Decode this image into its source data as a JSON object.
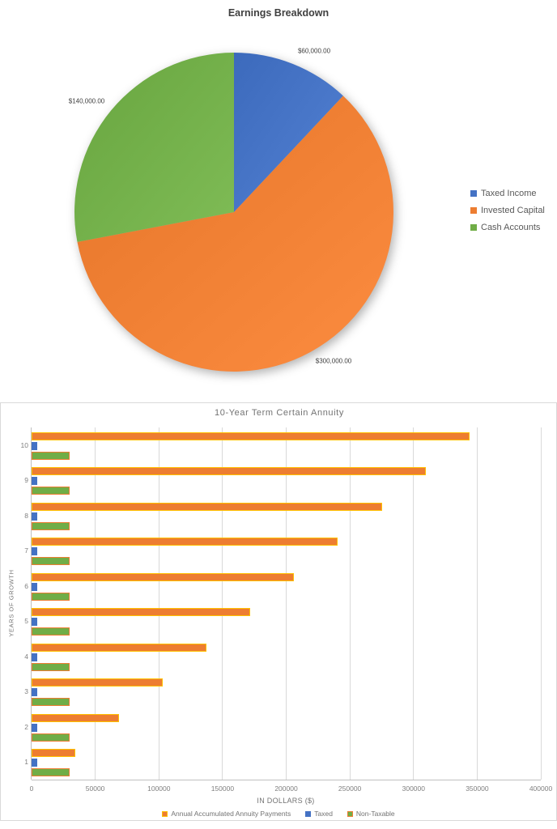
{
  "page": {
    "background": "#FFFFFF",
    "grid_color": "#D9D9D9",
    "axis_color": "#BFBFBF"
  },
  "chart_data": [
    {
      "type": "pie",
      "title": "Earnings Breakdown",
      "legend_position": "right",
      "start_angle": "12 o'clock",
      "direction": "clockwise",
      "total": 500000,
      "slices": [
        {
          "label": "Taxed Income",
          "value": 60000,
          "data_label": "$60,000.00",
          "color": "#4472C4"
        },
        {
          "label": "Invested Capital",
          "value": 300000,
          "data_label": "$300,000.00",
          "color": "#ED7D31"
        },
        {
          "label": "Cash Accounts",
          "value": 140000,
          "data_label": "$140,000.00",
          "color": "#70AD47"
        }
      ]
    },
    {
      "type": "bar",
      "orientation": "horizontal",
      "title": "10-Year Term Certain Annuity",
      "xlabel": "IN DOLLARS ($)",
      "ylabel": "YEARS OF GROWTH",
      "xlim": [
        0,
        400000
      ],
      "xticks": [
        "0",
        "50000",
        "100000",
        "150000",
        "200000",
        "250000",
        "300000",
        "350000",
        "400000"
      ],
      "grid": true,
      "legend_position": "bottom",
      "categories_top_to_bottom": [
        "10",
        "9",
        "8",
        "7",
        "6",
        "5",
        "4",
        "3",
        "2",
        "1"
      ],
      "series": [
        {
          "name": "Annual Accumulated Annuity Payments",
          "color": "#ED7D31",
          "border_color": "#FFC000",
          "values_top_to_bottom": [
            343800,
            309420,
            275040,
            240660,
            206280,
            171900,
            137520,
            103140,
            68760,
            34380
          ]
        },
        {
          "name": "Taxed",
          "color": "#4472C4",
          "border_color": "#4472C4",
          "values_top_to_bottom": [
            4380,
            4380,
            4380,
            4380,
            4380,
            4380,
            4380,
            4380,
            4380,
            4380
          ]
        },
        {
          "name": "Non-Taxable",
          "color": "#70AD47",
          "border_color": "#ED7D31",
          "values_top_to_bottom": [
            30000,
            30000,
            30000,
            30000,
            30000,
            30000,
            30000,
            30000,
            30000,
            30000
          ]
        }
      ]
    }
  ]
}
